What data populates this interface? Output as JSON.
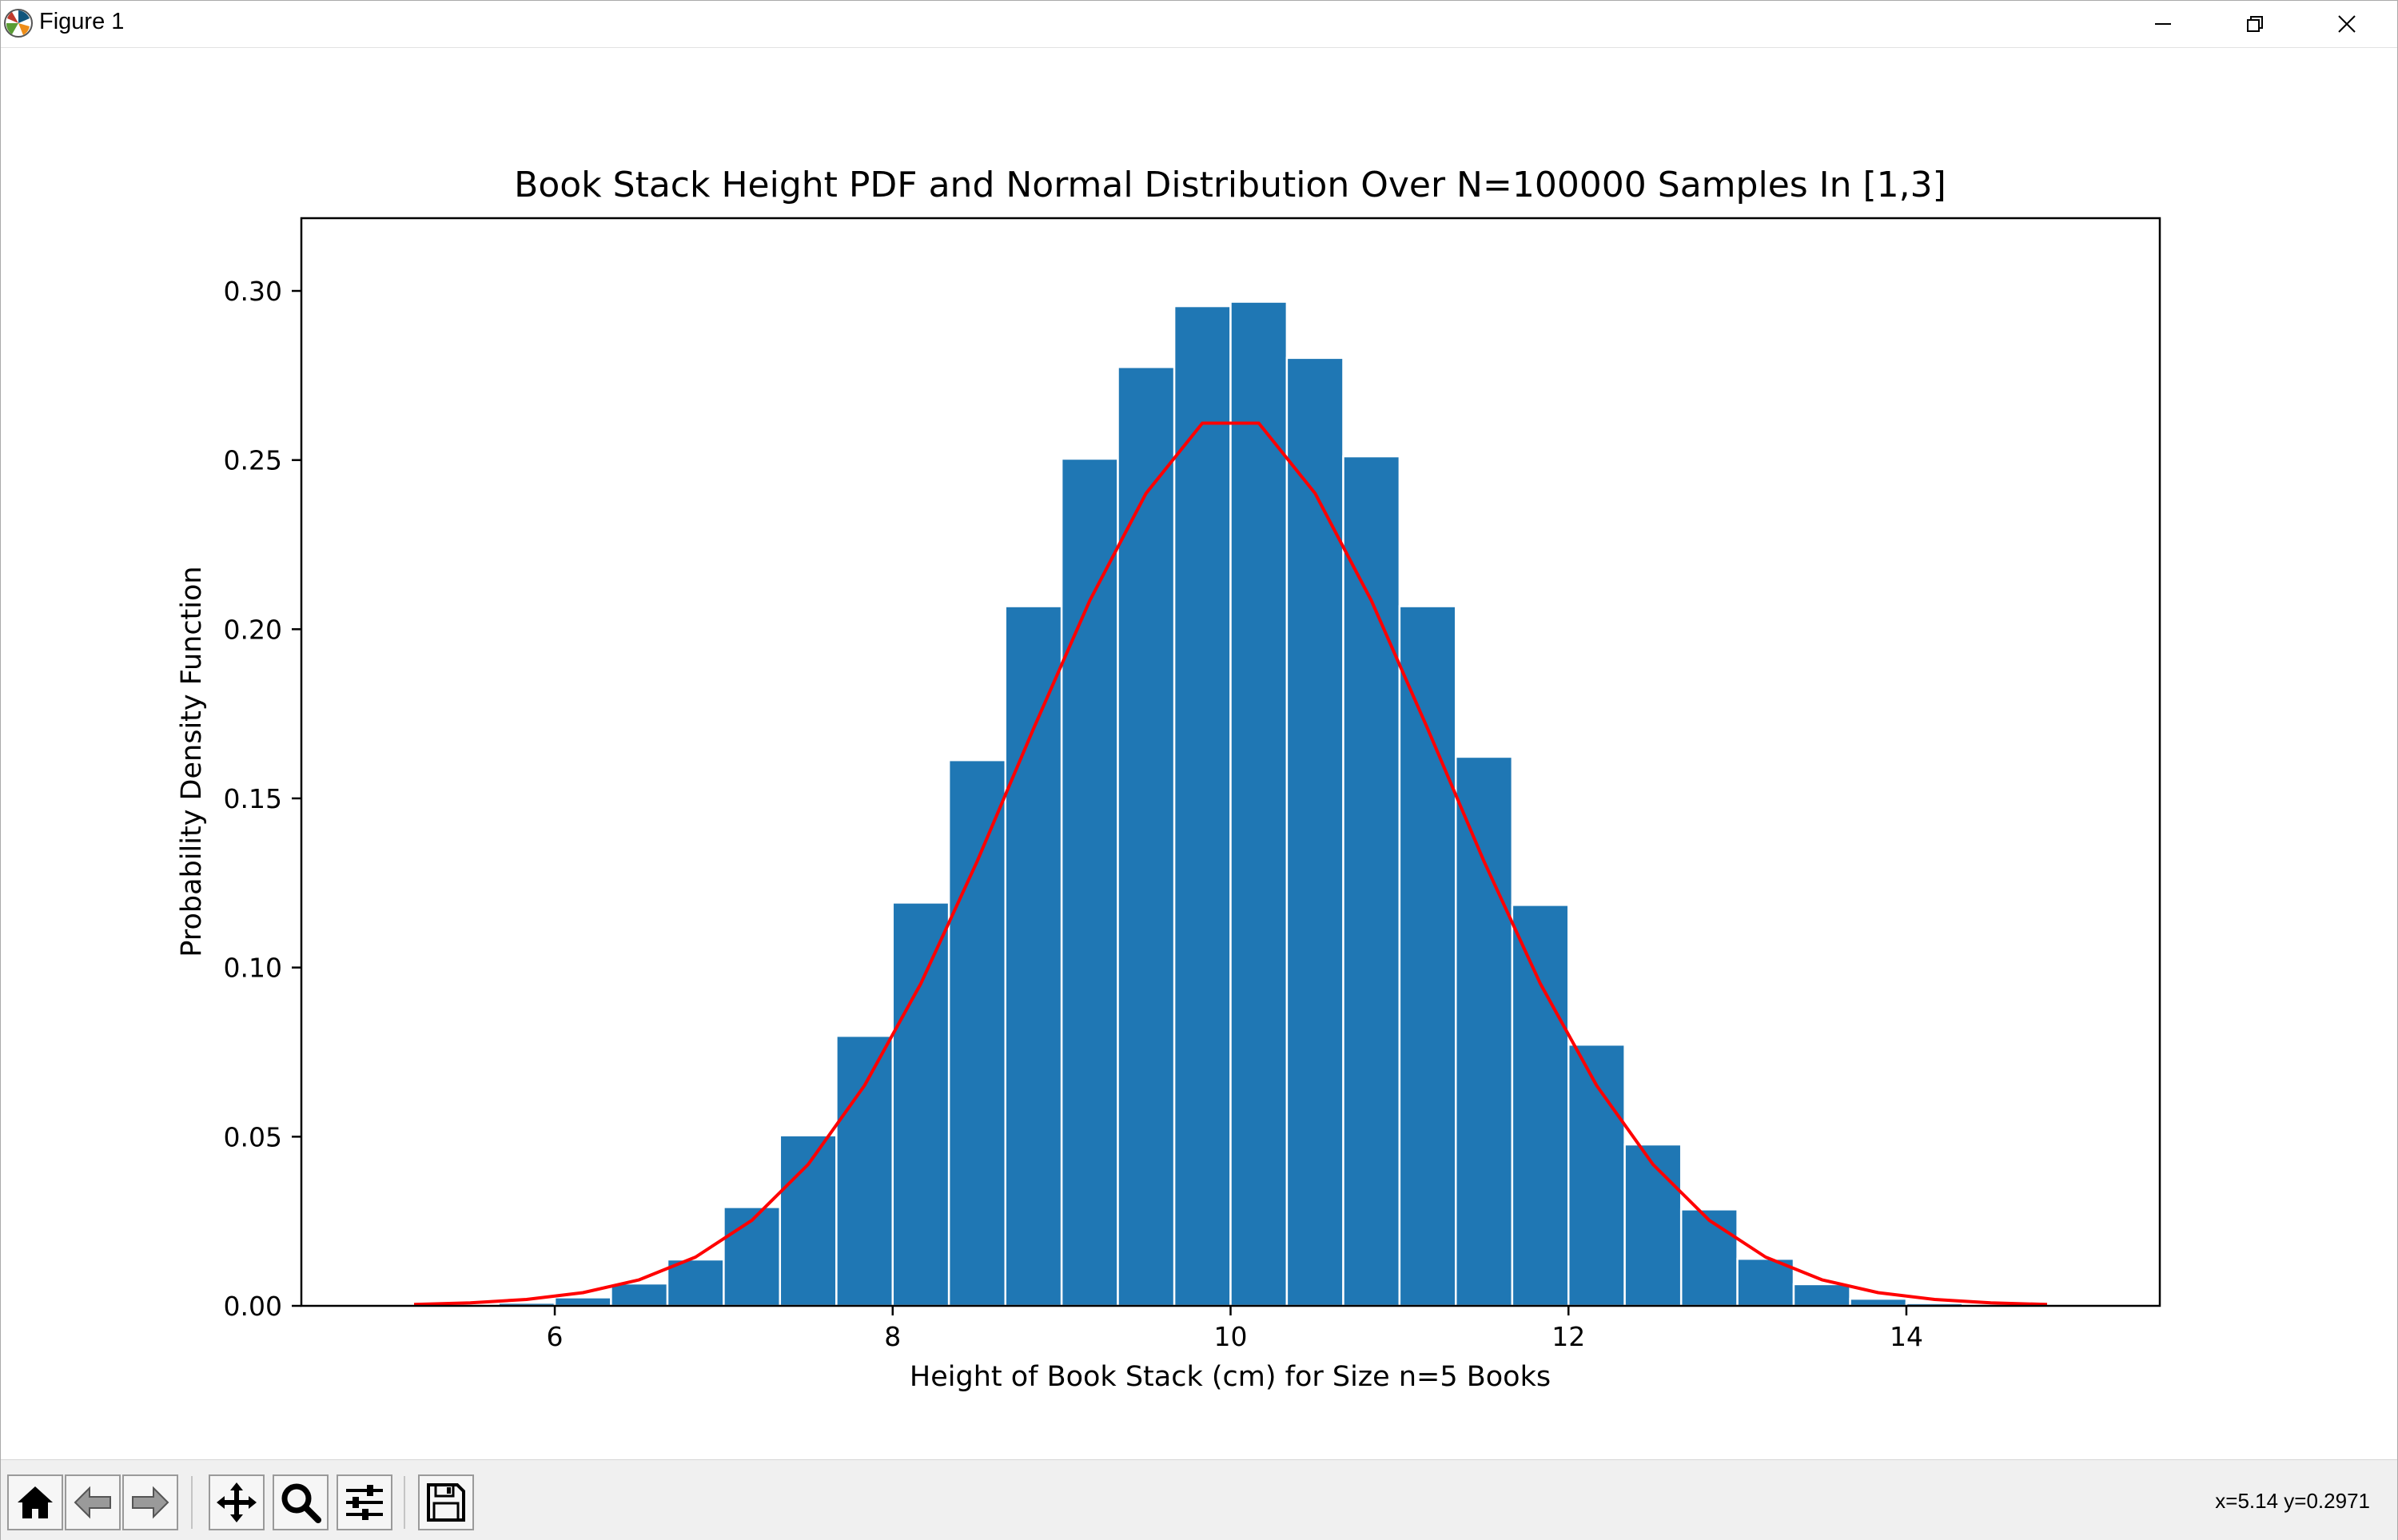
{
  "window": {
    "title": "Figure 1",
    "icons": {
      "app": "matplotlib-icon",
      "minimize": "minimize-icon",
      "maximize": "restore-icon",
      "close": "close-icon"
    }
  },
  "toolbar": {
    "buttons": [
      {
        "name": "home-button",
        "icon": "home-icon"
      },
      {
        "name": "back-button",
        "icon": "arrow-left-icon"
      },
      {
        "name": "forward-button",
        "icon": "arrow-right-icon"
      },
      {
        "name": "pan-button",
        "icon": "move-icon"
      },
      {
        "name": "zoom-button",
        "icon": "magnifier-icon"
      },
      {
        "name": "configure-subplots-button",
        "icon": "sliders-icon"
      },
      {
        "name": "save-button",
        "icon": "floppy-disk-icon"
      }
    ],
    "coords": "x=5.14 y=0.2971"
  },
  "chart_data": {
    "type": "bar",
    "title": "Book Stack Height PDF and Normal Distribution Over N=100000 Samples In [1,3]",
    "xlabel": "Height of Book Stack (cm) for Size n=5 Books",
    "ylabel": "Probability Density Function",
    "xlim": [
      4.5,
      15.5
    ],
    "ylim": [
      0,
      0.3215
    ],
    "xticks": [
      6,
      8,
      10,
      12,
      14
    ],
    "xtick_labels": [
      "6",
      "8",
      "10",
      "12",
      "14"
    ],
    "yticks": [
      0,
      0.05,
      0.1,
      0.15,
      0.2,
      0.25,
      0.3
    ],
    "ytick_labels": [
      "0.00",
      "0.05",
      "0.10",
      "0.15",
      "0.20",
      "0.25",
      "0.30"
    ],
    "grid": false,
    "legend": "none",
    "colors": {
      "bars": "#1f77b4",
      "bar_edge": "#ffffff",
      "curve": "#ff0000",
      "axes": "#000000"
    },
    "bins": {
      "edges": [
        5.0,
        5.333,
        5.667,
        6.0,
        6.333,
        6.667,
        7.0,
        7.333,
        7.667,
        8.0,
        8.333,
        8.667,
        9.0,
        9.333,
        9.667,
        10.0,
        10.333,
        10.667,
        11.0,
        11.333,
        11.667,
        12.0,
        12.333,
        12.667,
        13.0,
        13.333,
        13.667,
        14.0,
        14.333,
        14.667,
        15.0
      ],
      "values": [
        0.0,
        0.0002,
        0.0009,
        0.0025,
        0.0066,
        0.0137,
        0.0292,
        0.0504,
        0.0798,
        0.1192,
        0.1613,
        0.2068,
        0.2504,
        0.2775,
        0.2955,
        0.2968,
        0.2802,
        0.2511,
        0.2068,
        0.1623,
        0.1185,
        0.0772,
        0.0477,
        0.0285,
        0.0139,
        0.0064,
        0.0021,
        0.0008,
        0.0002,
        0.0
      ]
    },
    "series": [
      {
        "type": "line",
        "x": [
          5.167,
          5.5,
          5.833,
          6.167,
          6.5,
          6.833,
          7.167,
          7.5,
          7.833,
          8.167,
          8.5,
          8.833,
          9.167,
          9.5,
          9.833,
          10.167,
          10.5,
          10.833,
          11.167,
          11.5,
          11.833,
          12.167,
          12.5,
          12.833,
          13.167,
          13.5,
          13.833,
          14.167,
          14.5,
          14.833
        ],
        "y": [
          0.0004,
          0.0009,
          0.0019,
          0.0039,
          0.0077,
          0.0144,
          0.0253,
          0.0418,
          0.0651,
          0.0953,
          0.1314,
          0.1705,
          0.2085,
          0.2402,
          0.2609,
          0.2609,
          0.2402,
          0.2085,
          0.1705,
          0.1314,
          0.0953,
          0.0651,
          0.0418,
          0.0253,
          0.0144,
          0.0077,
          0.0039,
          0.0019,
          0.0009,
          0.0004
        ]
      }
    ]
  }
}
